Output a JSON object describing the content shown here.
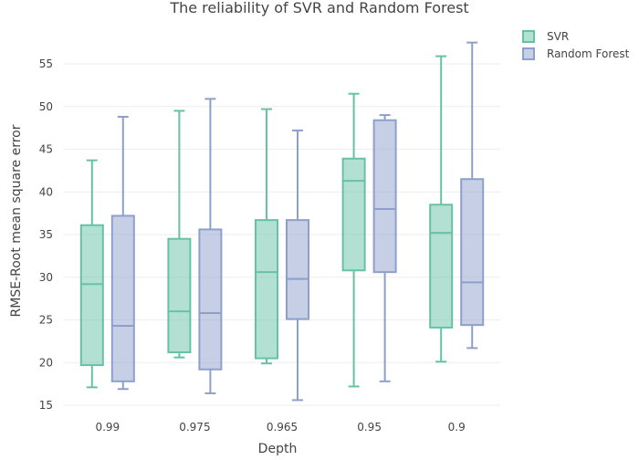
{
  "chart_data": {
    "type": "box",
    "title": "The reliability of SVR and Random Forest",
    "xlabel": "Depth",
    "ylabel": "RMSE-Root mean square error",
    "ylim": [
      14.5,
      58.5
    ],
    "yticks": [
      15,
      20,
      25,
      30,
      35,
      40,
      45,
      50,
      55
    ],
    "grid": true,
    "legend_position": "top-right",
    "categories": [
      "0.99",
      "0.975",
      "0.965",
      "0.95",
      "0.9"
    ],
    "series": [
      {
        "name": "SVR",
        "color": "#66c2a5",
        "fill": "rgba(102,194,165,0.5)",
        "boxes": [
          {
            "min": 17.1,
            "q1": 19.7,
            "median": 29.2,
            "q3": 36.1,
            "max": 43.7
          },
          {
            "min": 20.6,
            "q1": 21.2,
            "median": 26.0,
            "q3": 34.5,
            "max": 49.5
          },
          {
            "min": 19.9,
            "q1": 20.5,
            "median": 30.6,
            "q3": 36.7,
            "max": 49.7
          },
          {
            "min": 17.2,
            "q1": 30.8,
            "median": 41.3,
            "q3": 43.9,
            "max": 51.5
          },
          {
            "min": 20.1,
            "q1": 24.1,
            "median": 35.2,
            "q3": 38.5,
            "max": 55.9
          }
        ]
      },
      {
        "name": "Random Forest",
        "color": "#8da0cb",
        "fill": "rgba(141,160,203,0.5)",
        "boxes": [
          {
            "min": 16.9,
            "q1": 17.8,
            "median": 24.3,
            "q3": 37.2,
            "max": 48.8
          },
          {
            "min": 16.4,
            "q1": 19.2,
            "median": 25.8,
            "q3": 35.6,
            "max": 50.9
          },
          {
            "min": 15.6,
            "q1": 25.1,
            "median": 29.8,
            "q3": 36.7,
            "max": 47.2
          },
          {
            "min": 17.8,
            "q1": 30.6,
            "median": 38.0,
            "q3": 48.4,
            "max": 49.0
          },
          {
            "min": 21.7,
            "q1": 24.4,
            "median": 29.4,
            "q3": 41.5,
            "max": 57.5
          }
        ]
      }
    ]
  }
}
